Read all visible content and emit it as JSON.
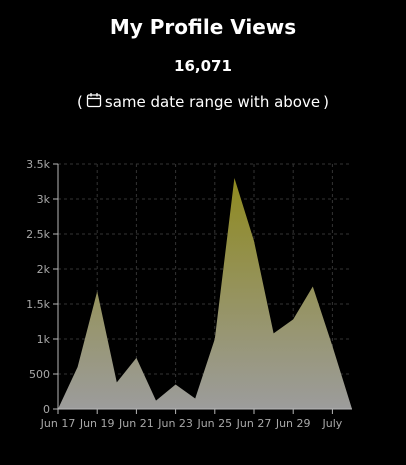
{
  "header": {
    "title": "My Profile Views",
    "total": "16,071",
    "open_paren": "(",
    "range_note": "same date range with above",
    "close_paren": ")"
  },
  "icons": {
    "range_icon": "calendar-icon"
  },
  "colors": {
    "background": "#000000",
    "area_top": "#8f8a1f",
    "area_bottom": "#9c9c9c",
    "axis": "#b8b8b8"
  },
  "chart_data": {
    "type": "area",
    "x": [
      "Jun 17",
      "Jun 18",
      "Jun 19",
      "Jun 20",
      "Jun 21",
      "Jun 22",
      "Jun 23",
      "Jun 24",
      "Jun 25",
      "Jun 26",
      "Jun 27",
      "Jun 28",
      "Jun 29",
      "Jun 30",
      "Jul 1",
      "Jul 2"
    ],
    "values": [
      0,
      600,
      1680,
      380,
      730,
      120,
      350,
      150,
      1000,
      3300,
      2400,
      1080,
      1280,
      1750,
      900,
      0
    ],
    "x_ticks": [
      "Jun 17",
      "Jun 19",
      "Jun 21",
      "Jun 23",
      "Jun 25",
      "Jun 27",
      "Jun 29",
      "July"
    ],
    "y_ticks": [
      "0",
      "500",
      "1k",
      "1.5k",
      "2k",
      "2.5k",
      "3k",
      "3.5k"
    ],
    "ylim": [
      0,
      3500
    ],
    "grid": true
  }
}
